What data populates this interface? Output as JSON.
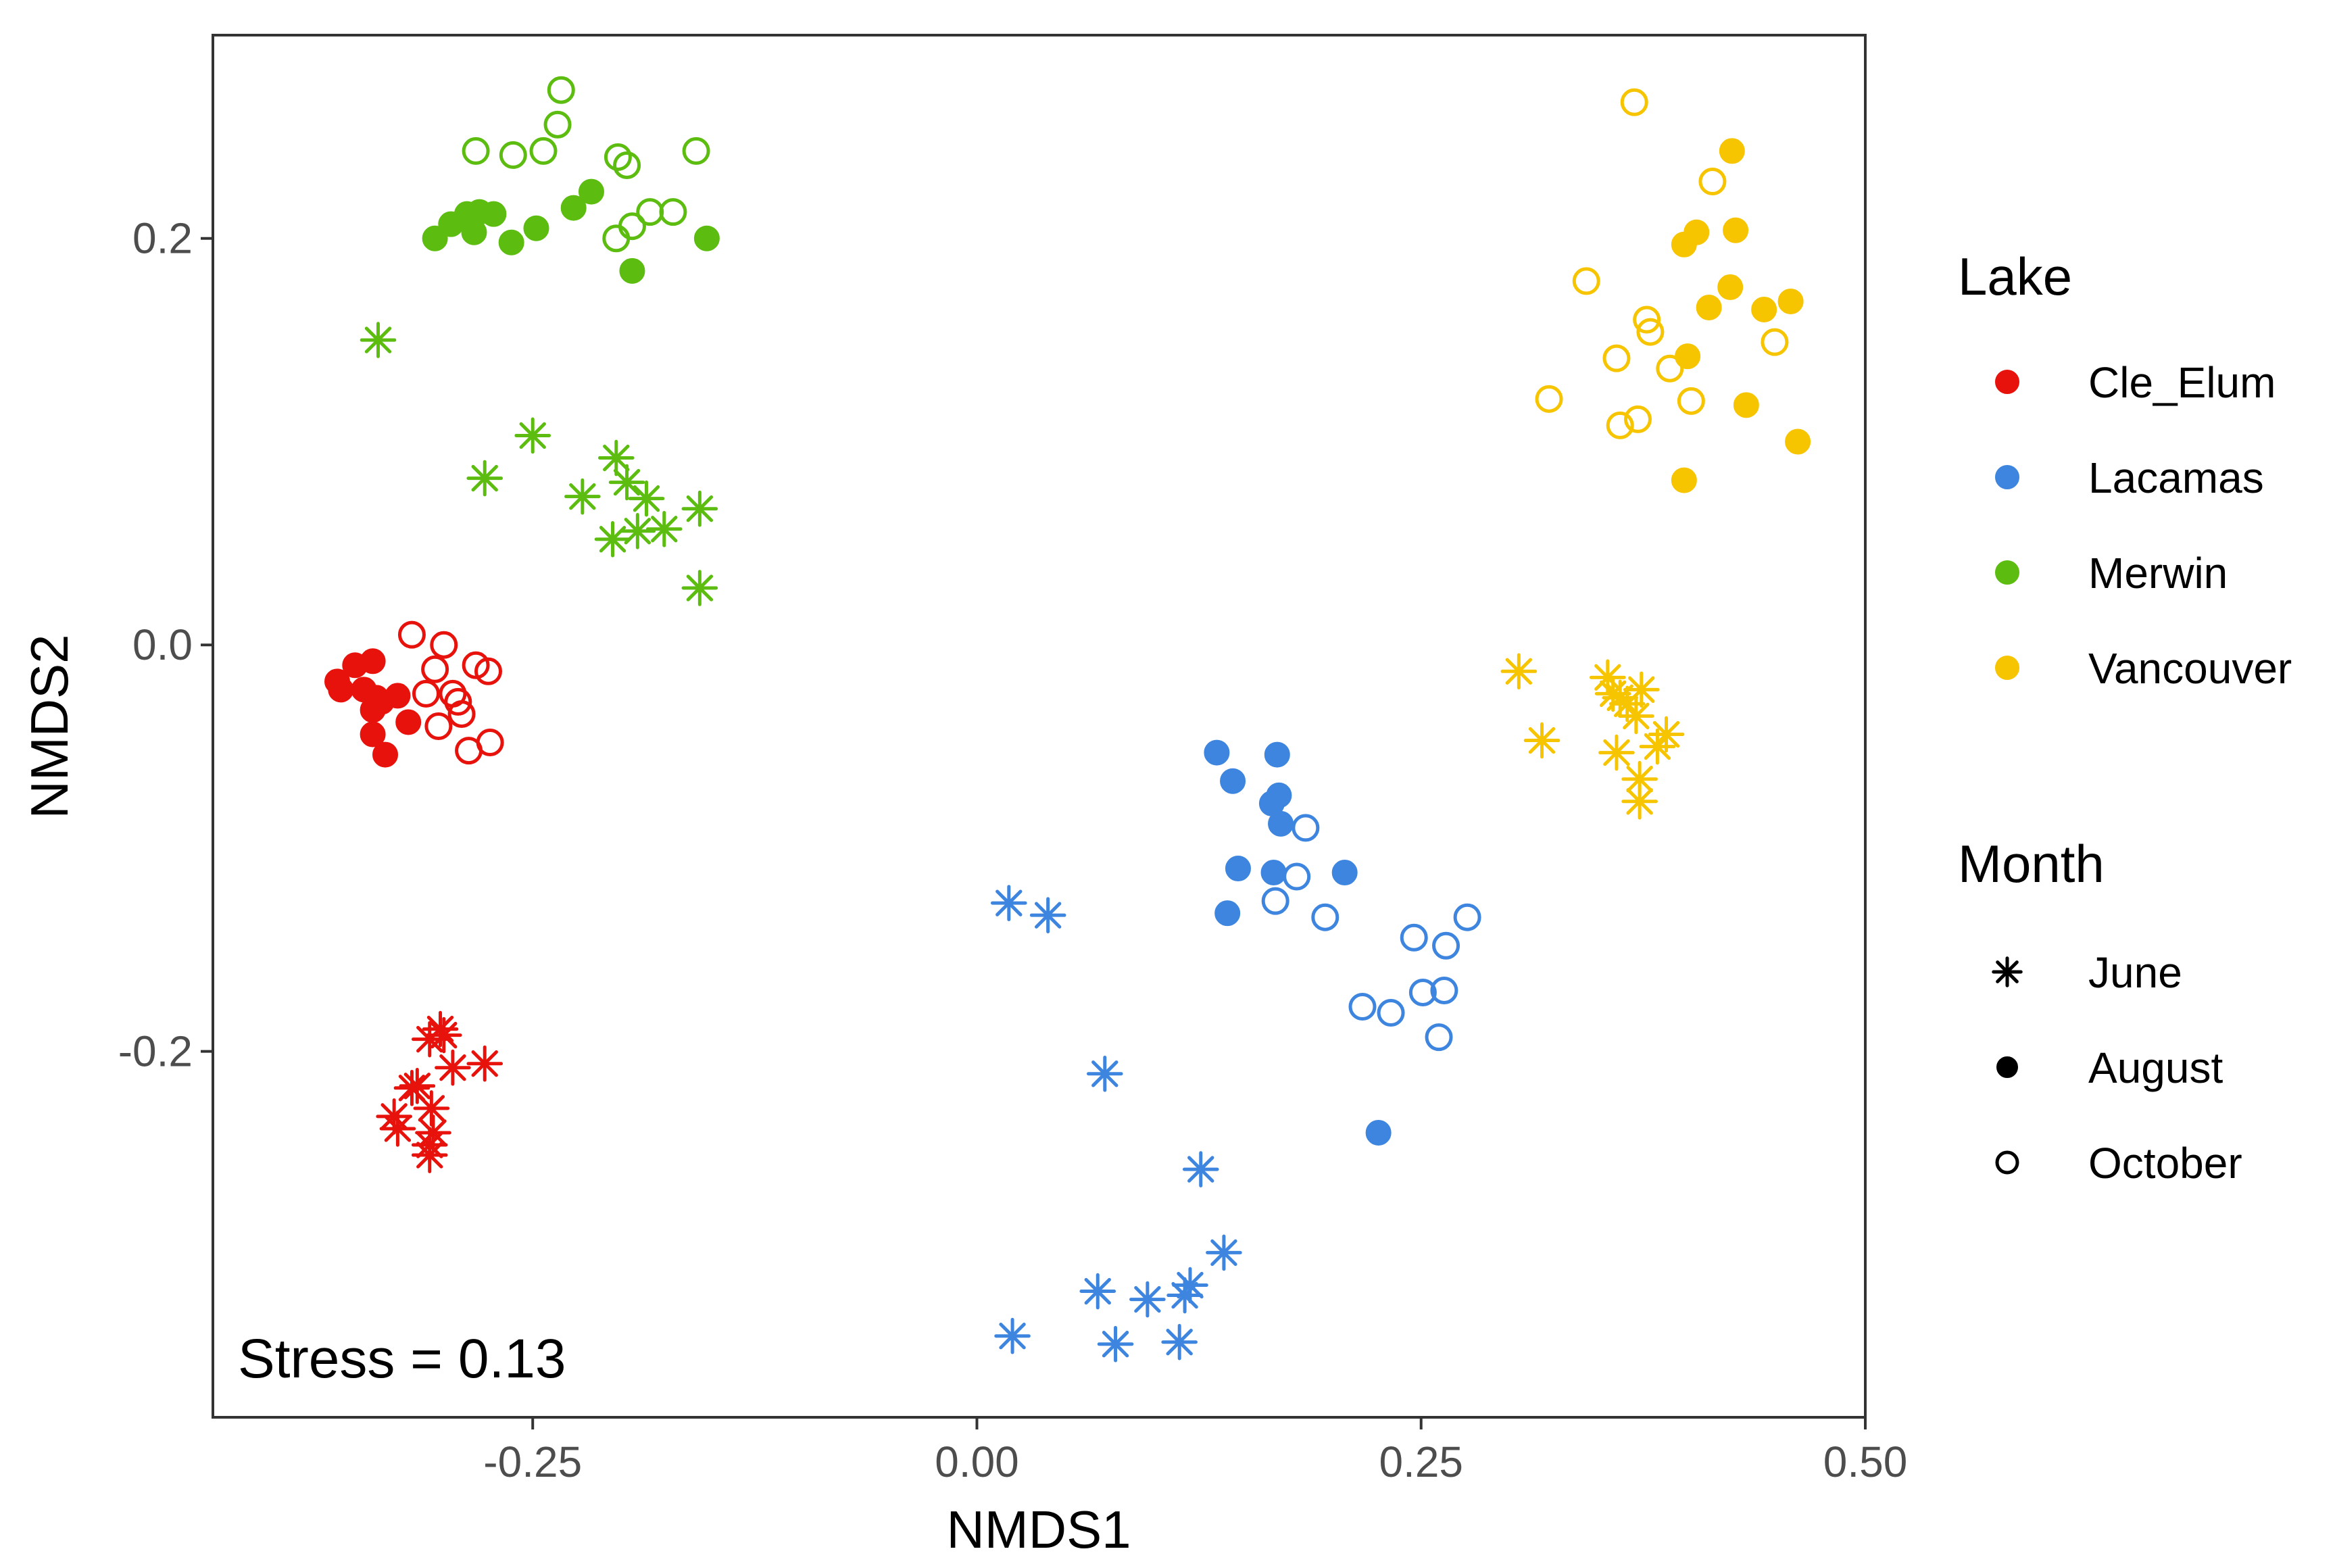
{
  "chart_data": {
    "type": "scatter",
    "title": "",
    "xlabel": "NMDS1",
    "ylabel": "NMDS2",
    "xlim": [
      -0.43,
      0.5
    ],
    "ylim": [
      -0.38,
      0.3
    ],
    "xticks": [
      -0.25,
      0.0,
      0.25,
      0.5
    ],
    "xtick_labels": [
      "-0.25",
      "0.00",
      "0.25",
      "0.50"
    ],
    "yticks": [
      -0.2,
      0.0,
      0.2
    ],
    "ytick_labels": [
      "-0.2",
      "0.0",
      "0.2"
    ],
    "grid": false,
    "legend_position": "right",
    "annotation": "Stress = 0.13",
    "legend": {
      "color_title": "Lake",
      "shape_title": "Month",
      "lakes": [
        {
          "name": "Cle_Elum",
          "color": "#e8120c"
        },
        {
          "name": "Lacamas",
          "color": "#3d85de"
        },
        {
          "name": "Merwin",
          "color": "#5cbd10"
        },
        {
          "name": "Vancouver",
          "color": "#f7c400"
        }
      ],
      "months": [
        {
          "name": "June",
          "shape": "star"
        },
        {
          "name": "August",
          "shape": "filled-circle"
        },
        {
          "name": "October",
          "shape": "open-circle"
        }
      ]
    },
    "series": [
      {
        "lake": "Cle_Elum",
        "month": "June",
        "points": [
          [
            -0.328,
            -0.232
          ],
          [
            -0.326,
            -0.238
          ],
          [
            -0.318,
            -0.218
          ],
          [
            -0.315,
            -0.217
          ],
          [
            -0.308,
            -0.194
          ],
          [
            -0.302,
            -0.189
          ],
          [
            -0.3,
            -0.192
          ],
          [
            -0.307,
            -0.228
          ],
          [
            -0.306,
            -0.24
          ],
          [
            -0.308,
            -0.246
          ],
          [
            -0.308,
            -0.251
          ],
          [
            -0.295,
            -0.208
          ],
          [
            -0.277,
            -0.206
          ]
        ]
      },
      {
        "lake": "Cle_Elum",
        "month": "August",
        "points": [
          [
            -0.36,
            -0.018
          ],
          [
            -0.358,
            -0.022
          ],
          [
            -0.35,
            -0.01
          ],
          [
            -0.345,
            -0.022
          ],
          [
            -0.34,
            -0.008
          ],
          [
            -0.34,
            -0.032
          ],
          [
            -0.338,
            -0.026
          ],
          [
            -0.335,
            -0.028
          ],
          [
            -0.34,
            -0.044
          ],
          [
            -0.333,
            -0.054
          ],
          [
            -0.326,
            -0.025
          ],
          [
            -0.32,
            -0.038
          ]
        ]
      },
      {
        "lake": "Cle_Elum",
        "month": "October",
        "points": [
          [
            -0.318,
            0.005
          ],
          [
            -0.31,
            -0.024
          ],
          [
            -0.305,
            -0.012
          ],
          [
            -0.3,
            0.0
          ],
          [
            -0.295,
            -0.024
          ],
          [
            -0.292,
            -0.028
          ],
          [
            -0.29,
            -0.034
          ],
          [
            -0.303,
            -0.04
          ],
          [
            -0.282,
            -0.01
          ],
          [
            -0.286,
            -0.052
          ],
          [
            -0.275,
            -0.013
          ],
          [
            -0.274,
            -0.048
          ]
        ]
      },
      {
        "lake": "Lacamas",
        "month": "June",
        "points": [
          [
            0.018,
            -0.127
          ],
          [
            0.04,
            -0.133
          ],
          [
            0.072,
            -0.211
          ],
          [
            0.126,
            -0.258
          ],
          [
            0.139,
            -0.299
          ],
          [
            0.068,
            -0.318
          ],
          [
            0.096,
            -0.322
          ],
          [
            0.117,
            -0.32
          ],
          [
            0.12,
            -0.315
          ],
          [
            0.078,
            -0.344
          ],
          [
            0.114,
            -0.343
          ],
          [
            0.02,
            -0.34
          ]
        ]
      },
      {
        "lake": "Lacamas",
        "month": "August",
        "points": [
          [
            0.135,
            -0.053
          ],
          [
            0.169,
            -0.054
          ],
          [
            0.144,
            -0.067
          ],
          [
            0.166,
            -0.078
          ],
          [
            0.17,
            -0.074
          ],
          [
            0.171,
            -0.088
          ],
          [
            0.147,
            -0.11
          ],
          [
            0.167,
            -0.112
          ],
          [
            0.207,
            -0.112
          ],
          [
            0.141,
            -0.132
          ],
          [
            0.226,
            -0.24
          ]
        ]
      },
      {
        "lake": "Lacamas",
        "month": "October",
        "points": [
          [
            0.185,
            -0.09
          ],
          [
            0.18,
            -0.114
          ],
          [
            0.168,
            -0.126
          ],
          [
            0.196,
            -0.134
          ],
          [
            0.246,
            -0.144
          ],
          [
            0.264,
            -0.148
          ],
          [
            0.276,
            -0.134
          ],
          [
            0.217,
            -0.178
          ],
          [
            0.233,
            -0.181
          ],
          [
            0.251,
            -0.171
          ],
          [
            0.263,
            -0.17
          ],
          [
            0.26,
            -0.193
          ]
        ]
      },
      {
        "lake": "Merwin",
        "month": "June",
        "points": [
          [
            -0.337,
            0.15
          ],
          [
            -0.25,
            0.103
          ],
          [
            -0.277,
            0.082
          ],
          [
            -0.222,
            0.073
          ],
          [
            -0.203,
            0.092
          ],
          [
            -0.197,
            0.08
          ],
          [
            -0.186,
            0.072
          ],
          [
            -0.205,
            0.052
          ],
          [
            -0.191,
            0.056
          ],
          [
            -0.176,
            0.057
          ],
          [
            -0.156,
            0.067
          ],
          [
            -0.156,
            0.028
          ]
        ]
      },
      {
        "lake": "Merwin",
        "month": "August",
        "points": [
          [
            -0.305,
            0.2
          ],
          [
            -0.296,
            0.207
          ],
          [
            -0.287,
            0.212
          ],
          [
            -0.28,
            0.213
          ],
          [
            -0.283,
            0.203
          ],
          [
            -0.272,
            0.212
          ],
          [
            -0.262,
            0.198
          ],
          [
            -0.248,
            0.205
          ],
          [
            -0.227,
            0.215
          ],
          [
            -0.217,
            0.223
          ],
          [
            -0.194,
            0.184
          ],
          [
            -0.152,
            0.2
          ]
        ]
      },
      {
        "lake": "Merwin",
        "month": "October",
        "points": [
          [
            -0.234,
            0.273
          ],
          [
            -0.236,
            0.256
          ],
          [
            -0.282,
            0.243
          ],
          [
            -0.261,
            0.241
          ],
          [
            -0.244,
            0.243
          ],
          [
            -0.202,
            0.24
          ],
          [
            -0.197,
            0.236
          ],
          [
            -0.158,
            0.243
          ],
          [
            -0.184,
            0.213
          ],
          [
            -0.171,
            0.213
          ],
          [
            -0.194,
            0.206
          ],
          [
            -0.203,
            0.2
          ]
        ]
      },
      {
        "lake": "Vancouver",
        "month": "June",
        "points": [
          [
            0.305,
            -0.013
          ],
          [
            0.318,
            -0.047
          ],
          [
            0.355,
            -0.016
          ],
          [
            0.358,
            -0.024
          ],
          [
            0.362,
            -0.026
          ],
          [
            0.366,
            -0.029
          ],
          [
            0.371,
            -0.035
          ],
          [
            0.374,
            -0.022
          ],
          [
            0.383,
            -0.05
          ],
          [
            0.388,
            -0.044
          ],
          [
            0.36,
            -0.053
          ],
          [
            0.373,
            -0.066
          ],
          [
            0.373,
            -0.077
          ]
        ]
      },
      {
        "lake": "Vancouver",
        "month": "August",
        "points": [
          [
            0.425,
            0.243
          ],
          [
            0.398,
            0.197
          ],
          [
            0.405,
            0.203
          ],
          [
            0.427,
            0.204
          ],
          [
            0.424,
            0.176
          ],
          [
            0.412,
            0.166
          ],
          [
            0.443,
            0.165
          ],
          [
            0.458,
            0.169
          ],
          [
            0.4,
            0.142
          ],
          [
            0.433,
            0.118
          ],
          [
            0.462,
            0.1
          ],
          [
            0.398,
            0.081
          ]
        ]
      },
      {
        "lake": "Vancouver",
        "month": "October",
        "points": [
          [
            0.37,
            0.267
          ],
          [
            0.414,
            0.228
          ],
          [
            0.343,
            0.179
          ],
          [
            0.377,
            0.16
          ],
          [
            0.379,
            0.154
          ],
          [
            0.36,
            0.141
          ],
          [
            0.39,
            0.136
          ],
          [
            0.449,
            0.149
          ],
          [
            0.402,
            0.12
          ],
          [
            0.322,
            0.121
          ],
          [
            0.362,
            0.108
          ],
          [
            0.372,
            0.111
          ]
        ]
      }
    ]
  }
}
